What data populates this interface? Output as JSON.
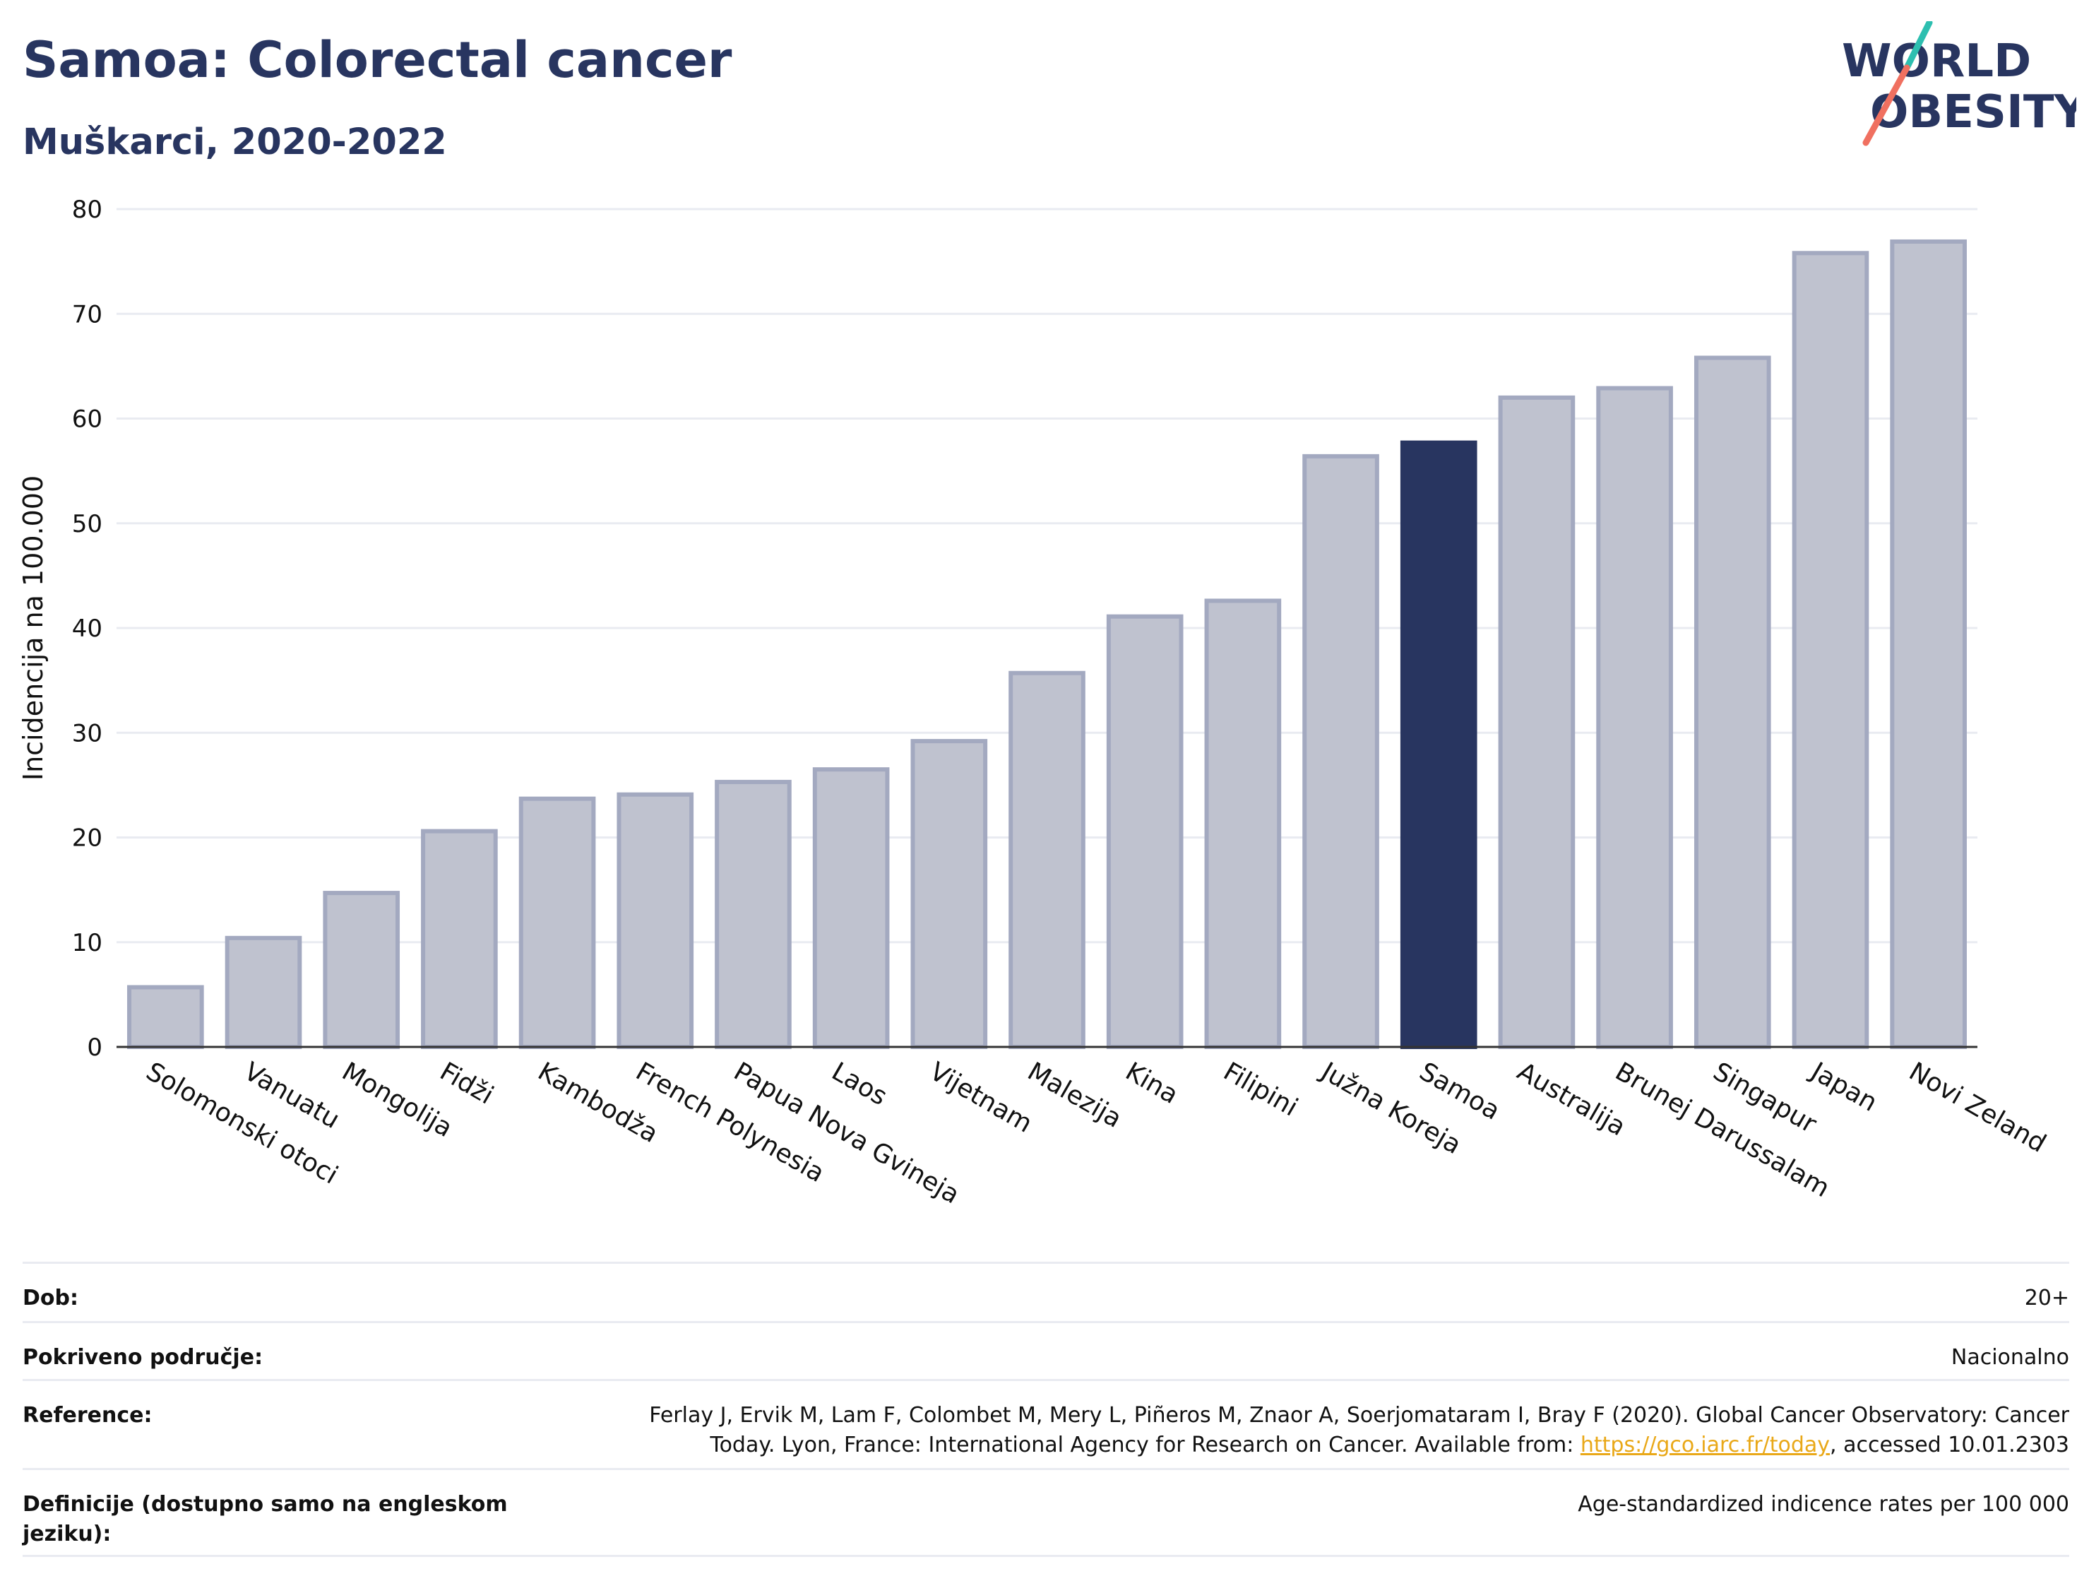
{
  "header": {
    "title": "Samoa: Colorectal cancer",
    "subtitle": "Muškarci, 2020-2022"
  },
  "logo": {
    "text_line1": "WORLD",
    "text_line2": "OBESITY",
    "text_color": "#283560",
    "slash_colors": [
      "#2dbfb0",
      "#f07060"
    ]
  },
  "chart_data": {
    "type": "bar",
    "title": "Samoa: Colorectal cancer",
    "subtitle": "Muškarci, 2020-2022",
    "xlabel": "",
    "ylabel": "Incidencija na 100.000",
    "ylim": [
      0,
      80
    ],
    "yticks": [
      0,
      10,
      20,
      30,
      40,
      50,
      60,
      70,
      80
    ],
    "grid": true,
    "categories": [
      "Solomonski otoci",
      "Vanuatu",
      "Mongolija",
      "Fidži",
      "Kambodža",
      "French Polynesia",
      "Papua Nova Gvineja",
      "Laos",
      "Vijetnam",
      "Malezija",
      "Kina",
      "Filipini",
      "Južna Koreja",
      "Samoa",
      "Australija",
      "Brunej Darussalam",
      "Singapur",
      "Japan",
      "Novi Zeland"
    ],
    "values": [
      5.7,
      10.4,
      14.7,
      20.6,
      23.7,
      24.1,
      25.3,
      26.5,
      29.2,
      35.7,
      41.1,
      42.6,
      56.4,
      57.7,
      62.0,
      62.9,
      65.8,
      75.8,
      76.9
    ],
    "highlight": "Samoa",
    "colors": {
      "bar": "#bfc2cf",
      "bar_outline": "#a3a9c0",
      "highlight": "#283560",
      "grid": "#e9ebf1",
      "axis": "#333333"
    }
  },
  "meta": {
    "age_label": "Dob:",
    "age_value": "20+",
    "coverage_label": "Pokriveno područje:",
    "coverage_value": "Nacionalno",
    "reference_label": "Reference:",
    "reference_text_line1": "Ferlay J, Ervik M, Lam F, Colombet M, Mery L, Piñeros M, Znaor A, Soerjomataram I, Bray F (2020). Global Cancer Observatory: Cancer",
    "reference_text_line2_pre": "Today. Lyon, France: International Agency for Research on Cancer. Available from: ",
    "reference_link": "https://gco.iarc.fr/today",
    "reference_text_line2_post": ", accessed 10.01.2303",
    "definition_label": "Definicije (dostupno samo na engleskom jeziku):",
    "definition_value": "Age-standardized indicence rates per 100 000"
  }
}
